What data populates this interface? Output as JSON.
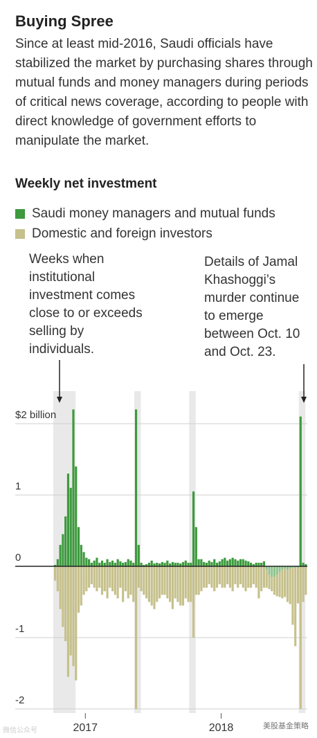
{
  "header": {
    "title": "Buying Spree",
    "subtitle": "Since at least mid-2016, Saudi officials have stabilized the market by purchasing shares through mutual funds and money managers during periods of critical news coverage, according to people with direct knowledge of government efforts to manipulate the market."
  },
  "section_title": "Weekly net investment",
  "legend": [
    {
      "label": "Saudi money managers and mutual funds",
      "color": "#3d9a3d"
    },
    {
      "label": "Domestic and foreign investors",
      "color": "#c6c08c"
    }
  ],
  "annotations": {
    "left": [
      "Weeks when",
      "institutional",
      "investment comes",
      "close to or exceeds",
      "selling by",
      "individuals."
    ],
    "right": [
      "Details of Jamal",
      "Khashoggi’s",
      "murder continue",
      "to emerge",
      "between Oct. 10",
      "and Oct. 23."
    ]
  },
  "watermarks": {
    "left": "微信公众号",
    "right": "美股基金策略"
  },
  "chart_data": {
    "type": "bar",
    "title": "Weekly net investment",
    "ylim": [
      -2.1,
      2.2
    ],
    "yticks": [
      {
        "value": 2,
        "label": "$2 billion"
      },
      {
        "value": 1,
        "label": "1"
      },
      {
        "value": 0,
        "label": "0"
      },
      {
        "value": -1,
        "label": "-1"
      },
      {
        "value": -2,
        "label": "-2"
      }
    ],
    "x_ticks": [
      {
        "week": 12,
        "label": "2017"
      },
      {
        "week": 64,
        "label": "2018"
      }
    ],
    "highlight_weeks": [
      [
        0,
        7
      ],
      [
        31,
        32
      ],
      [
        52,
        53
      ],
      [
        94,
        95
      ]
    ],
    "colors": {
      "institutional": "#3d9a3d",
      "individual": "#c6c08c",
      "highlight": "#e9e9e9",
      "grid": "#cfcfcf",
      "zero": "#222222"
    },
    "series": [
      {
        "name": "Saudi money managers and mutual funds",
        "values": [
          0.02,
          0.1,
          0.3,
          0.45,
          0.7,
          1.3,
          1.1,
          2.2,
          1.4,
          0.55,
          0.3,
          0.2,
          0.12,
          0.1,
          0.05,
          0.08,
          0.12,
          0.05,
          0.08,
          0.05,
          0.1,
          0.06,
          0.08,
          0.05,
          0.1,
          0.07,
          0.05,
          0.06,
          0.1,
          0.08,
          0.05,
          2.2,
          0.3,
          0.05,
          0.02,
          0.03,
          0.05,
          0.08,
          0.04,
          0.05,
          0.04,
          0.06,
          0.05,
          0.08,
          0.04,
          0.06,
          0.05,
          0.05,
          0.04,
          0.06,
          0.08,
          0.05,
          0.05,
          1.05,
          0.55,
          0.1,
          0.1,
          0.06,
          0.05,
          0.08,
          0.06,
          0.1,
          0.05,
          0.07,
          0.1,
          0.12,
          0.08,
          0.1,
          0.12,
          0.1,
          0.08,
          0.1,
          0.1,
          0.08,
          0.07,
          0.05,
          0.03,
          0.05,
          0.05,
          0.05,
          0.07,
          -0.05,
          -0.12,
          -0.15,
          -0.15,
          -0.12,
          -0.08,
          -0.05,
          -0.03,
          -0.05,
          -0.03,
          -0.02,
          -0.02,
          -0.02,
          2.1,
          0.05,
          0.03
        ]
      },
      {
        "name": "Domestic and foreign investors",
        "values": [
          -0.2,
          -0.35,
          -0.6,
          -0.85,
          -1.05,
          -1.55,
          -1.25,
          -1.4,
          -1.6,
          -0.65,
          -0.55,
          -0.4,
          -0.35,
          -0.3,
          -0.25,
          -0.3,
          -0.35,
          -0.3,
          -0.4,
          -0.35,
          -0.45,
          -0.3,
          -0.35,
          -0.4,
          -0.45,
          -0.3,
          -0.5,
          -0.35,
          -0.45,
          -0.4,
          -0.5,
          -2.0,
          -0.3,
          -0.35,
          -0.4,
          -0.45,
          -0.5,
          -0.55,
          -0.6,
          -0.5,
          -0.45,
          -0.4,
          -0.4,
          -0.45,
          -0.5,
          -0.6,
          -0.45,
          -0.5,
          -0.55,
          -0.55,
          -0.45,
          -0.5,
          -0.5,
          -1.0,
          -0.4,
          -0.4,
          -0.35,
          -0.3,
          -0.3,
          -0.25,
          -0.3,
          -0.35,
          -0.3,
          -0.25,
          -0.3,
          -0.3,
          -0.25,
          -0.3,
          -0.35,
          -0.25,
          -0.3,
          -0.25,
          -0.3,
          -0.35,
          -0.3,
          -0.3,
          -0.25,
          -0.3,
          -0.45,
          -0.35,
          -0.3,
          -0.25,
          -0.2,
          -0.2,
          -0.25,
          -0.3,
          -0.35,
          -0.4,
          -0.4,
          -0.45,
          -0.5,
          -0.8,
          -1.1,
          -0.5,
          -2.0,
          -0.5,
          -0.4
        ]
      }
    ]
  }
}
